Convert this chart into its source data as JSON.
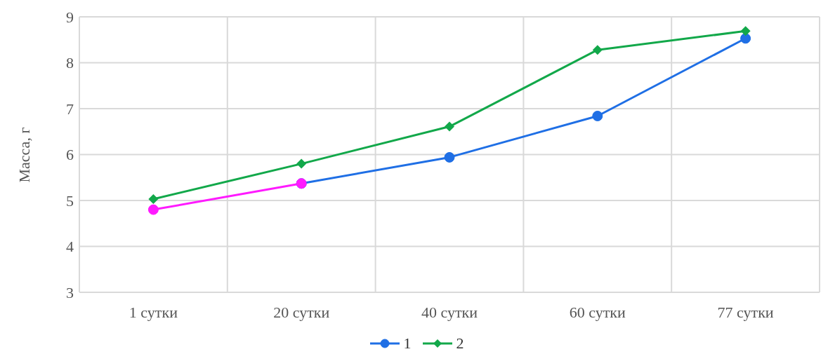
{
  "chart_data": {
    "type": "line",
    "ylabel": "Масса, г",
    "categories": [
      "1 сутки",
      "20 сутки",
      "40 сутки",
      "60 сутки",
      "77 сутки"
    ],
    "series": [
      {
        "name": "1",
        "color": "#1f6fe5",
        "marker": "circle",
        "values": [
          null,
          5.37,
          5.94,
          6.84,
          8.53
        ]
      },
      {
        "name": "2",
        "color": "#12a84a",
        "marker": "diamond",
        "values": [
          5.03,
          5.8,
          6.61,
          8.28,
          8.69
        ]
      },
      {
        "color": "#ff1aff",
        "marker": "circle",
        "values": [
          4.8,
          5.37,
          null,
          null,
          null
        ]
      }
    ],
    "ylim": [
      3,
      9
    ],
    "yticks": [
      3,
      4,
      5,
      6,
      7,
      8,
      9
    ],
    "grid": true,
    "legend": "bottom",
    "line_style": "solid"
  }
}
